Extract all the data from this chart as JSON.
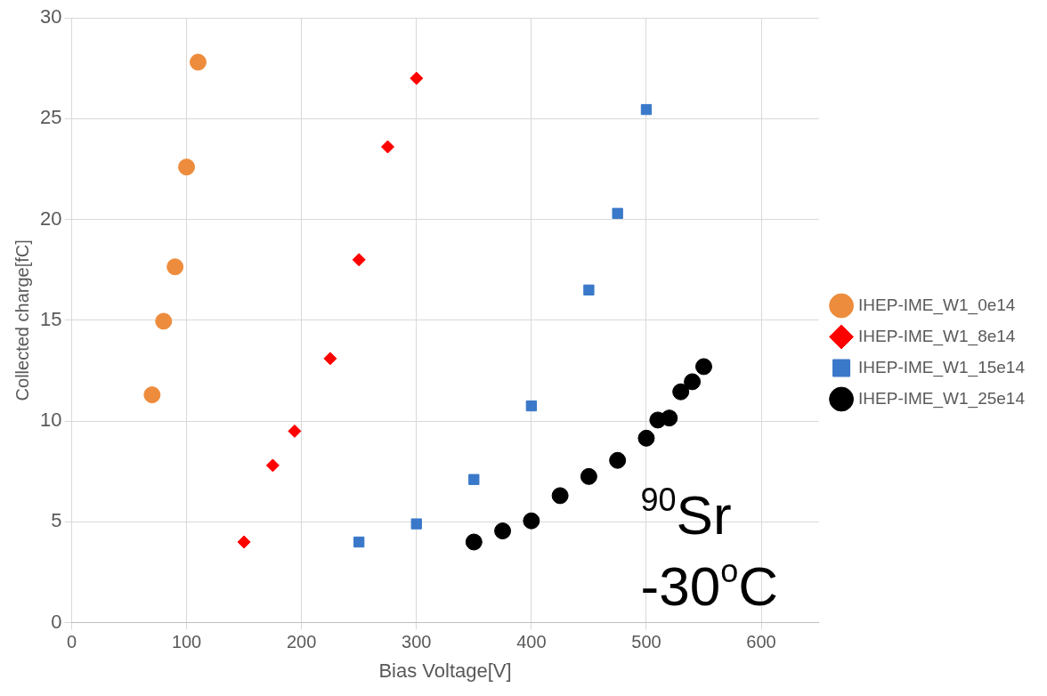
{
  "chart_data": {
    "type": "scatter",
    "xlabel": "Bias Voltage[V]",
    "ylabel": "Collected charge[fC]",
    "xlim": [
      0,
      650
    ],
    "xticks": [
      0,
      100,
      200,
      300,
      400,
      500,
      600
    ],
    "ylim": [
      0,
      30
    ],
    "yticks": [
      0,
      5,
      10,
      15,
      20,
      25,
      30
    ],
    "grid": true,
    "legend": "right",
    "annotations": [
      "$^{90}$Sr",
      "-30$^{o}$C"
    ],
    "series": [
      {
        "name": "IHEP-IME_W1_0e14",
        "color": "#ed8c3c",
        "marker": "circle",
        "x": [
          70,
          80,
          90,
          100,
          110
        ],
        "values": [
          11.3,
          14.95,
          17.65,
          22.6,
          27.8
        ]
      },
      {
        "name": "IHEP-IME_W1_8e14",
        "color": "#ff0000",
        "marker": "diamond",
        "x": [
          150,
          175,
          194,
          225,
          250,
          275,
          300
        ],
        "values": [
          4.0,
          7.8,
          9.5,
          13.1,
          18.0,
          23.6,
          27.0
        ]
      },
      {
        "name": "IHEP-IME_W1_15e14",
        "color": "#3a78c9",
        "marker": "square",
        "x": [
          250,
          300,
          350,
          400,
          450,
          475,
          500
        ],
        "values": [
          4.0,
          4.9,
          7.1,
          10.75,
          16.5,
          20.3,
          25.45
        ]
      },
      {
        "name": "IHEP-IME_W1_25e14",
        "color": "#000000",
        "marker": "circle",
        "x": [
          350,
          375,
          400,
          425,
          450,
          475,
          500,
          510,
          520,
          530,
          540,
          550
        ],
        "values": [
          4.0,
          4.55,
          5.05,
          6.3,
          7.25,
          8.05,
          9.15,
          10.05,
          10.15,
          11.45,
          11.95,
          12.7
        ]
      }
    ]
  }
}
